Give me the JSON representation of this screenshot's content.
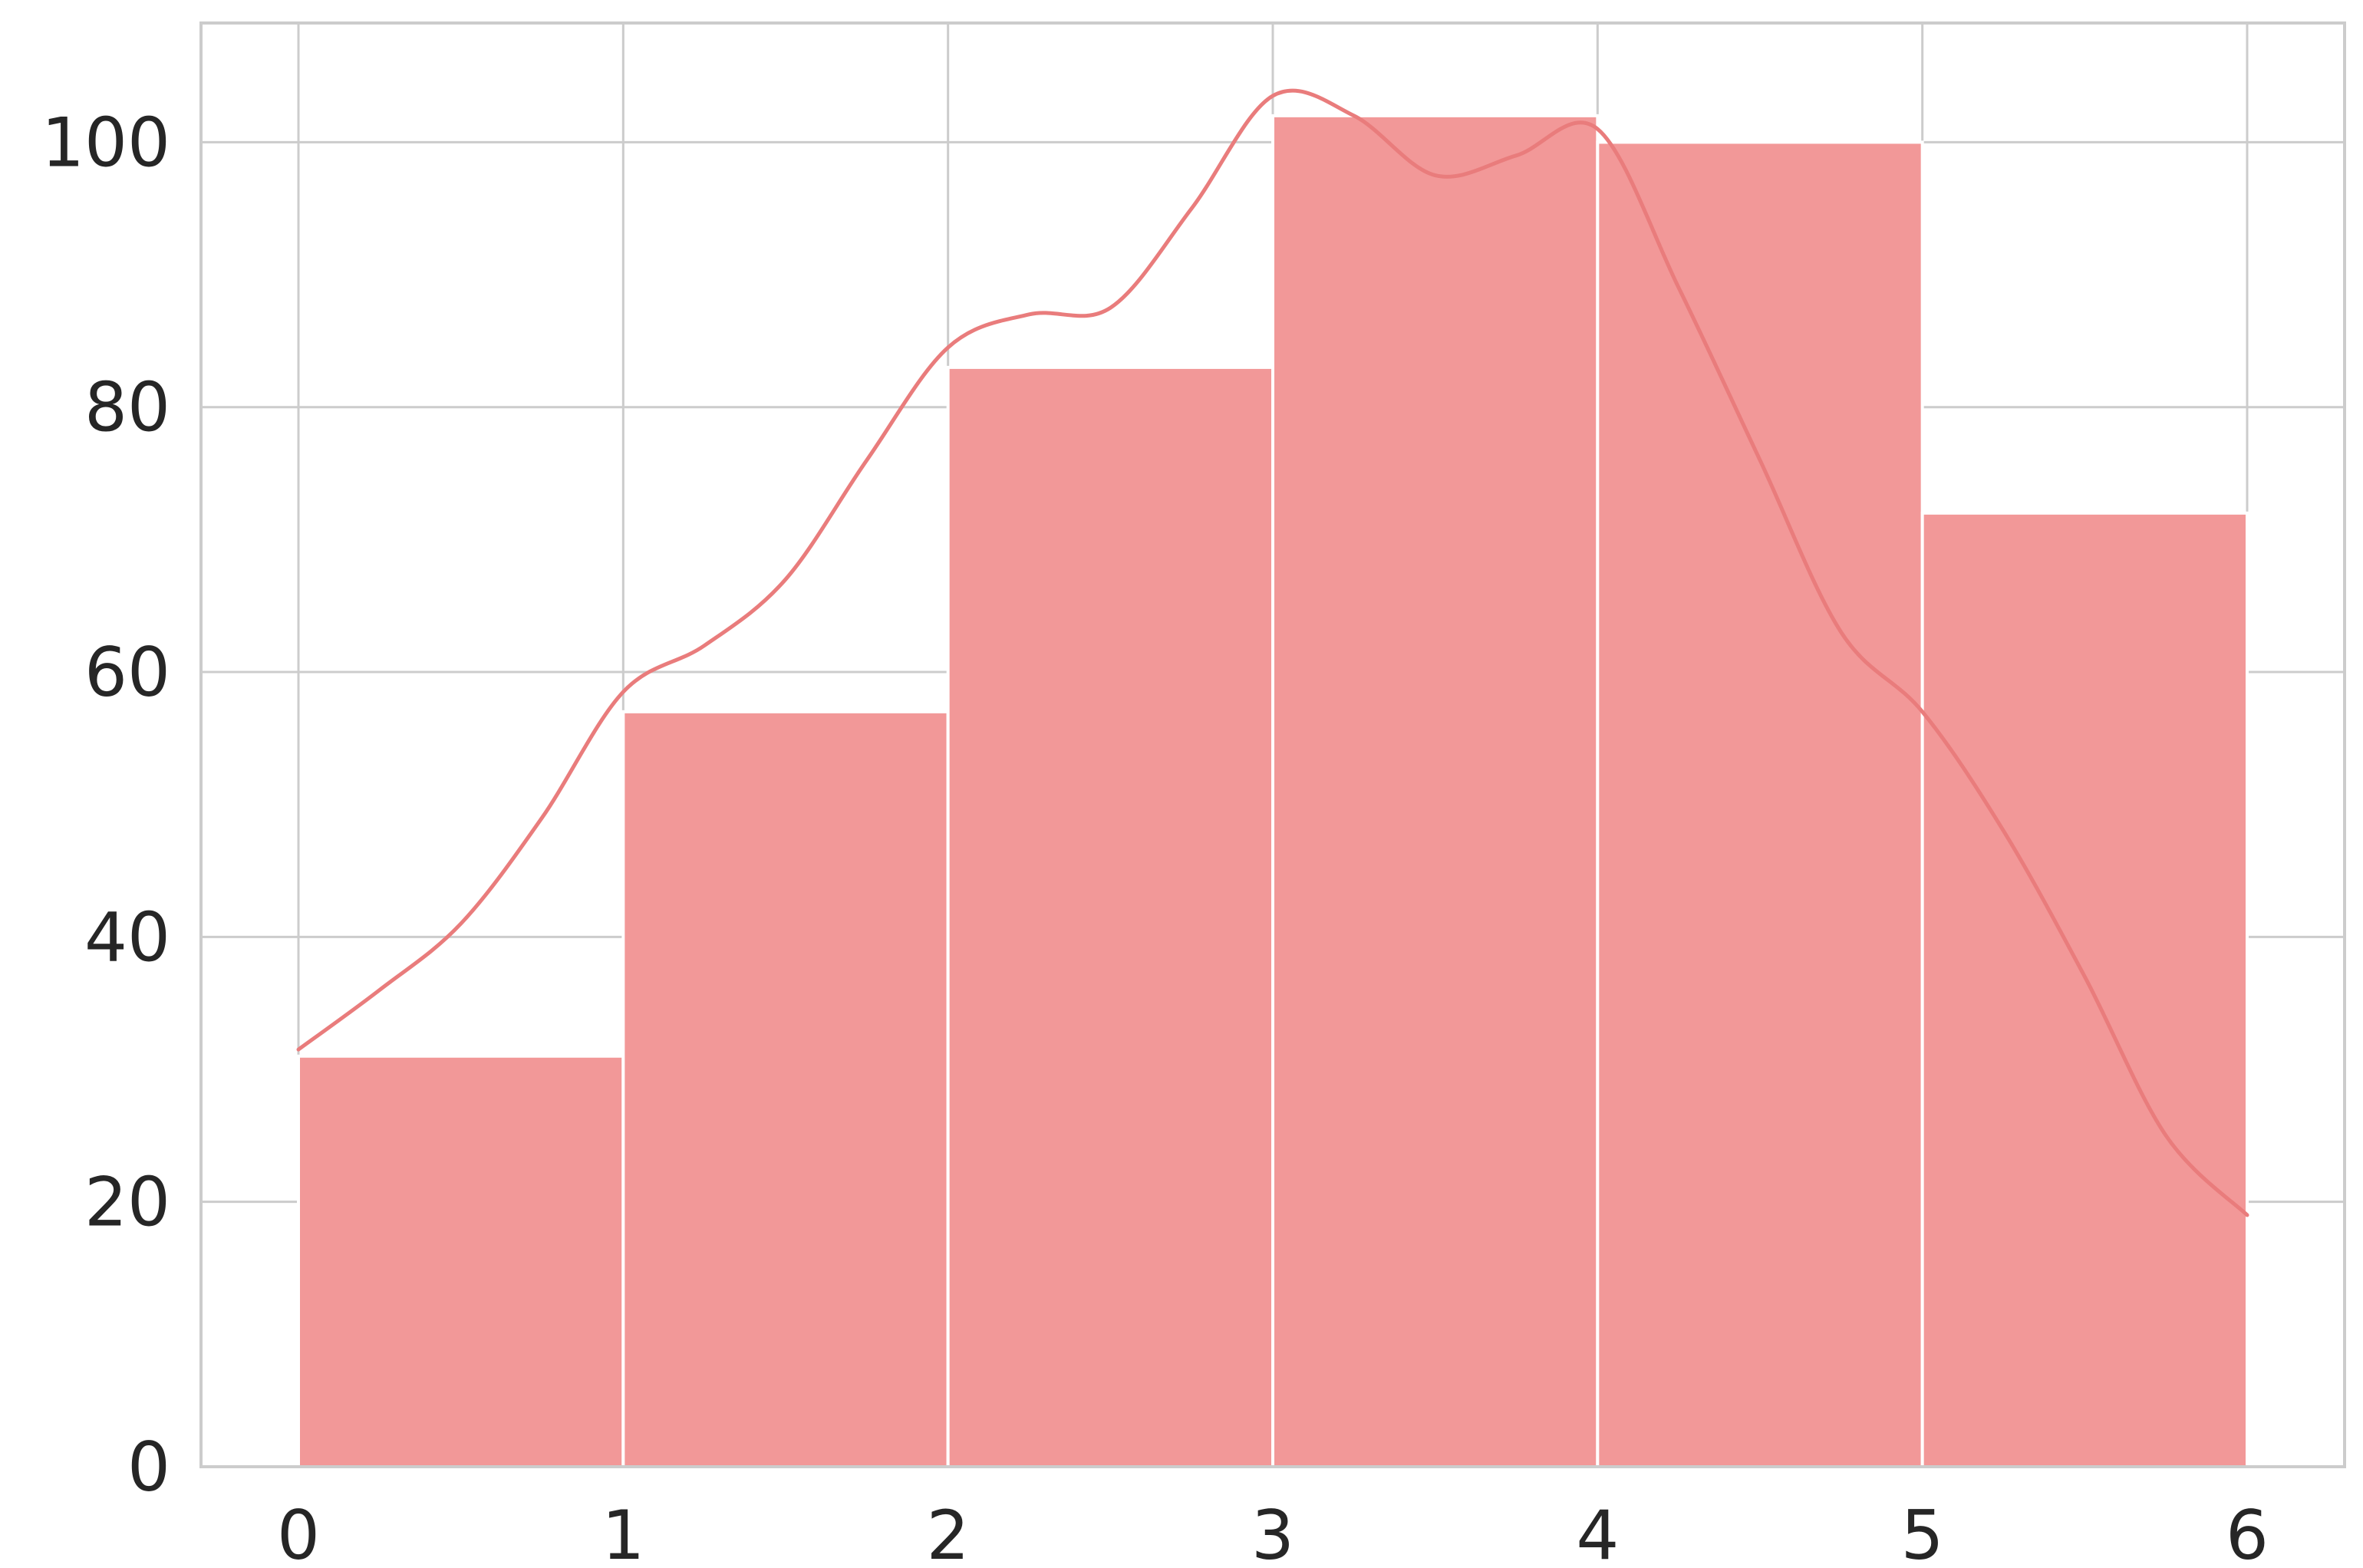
{
  "chart_data": {
    "type": "bar",
    "subtype": "histogram",
    "title": "",
    "xlabel": "",
    "ylabel": "",
    "bin_edges": [
      0,
      1,
      2,
      3,
      4,
      5,
      6
    ],
    "values": [
      31,
      57,
      83,
      102,
      100,
      72
    ],
    "kde_curve": {
      "x": [
        0,
        0.25,
        0.5,
        0.75,
        1.0,
        1.25,
        1.5,
        1.75,
        2.0,
        2.25,
        2.5,
        2.75,
        3.0,
        3.25,
        3.5,
        3.75,
        4.0,
        4.25,
        4.5,
        4.75,
        5.0,
        5.25,
        5.5,
        5.75,
        6.0
      ],
      "y": [
        31.5,
        36,
        41,
        49,
        58.5,
        62,
        67,
        76,
        84.5,
        87,
        87.5,
        95,
        103.5,
        102,
        97.5,
        99,
        101,
        89,
        76,
        63,
        57,
        48,
        37,
        25,
        19
      ]
    },
    "xlim": [
      -0.3,
      6.3
    ],
    "ylim": [
      0,
      109
    ],
    "xticks": [
      "0",
      "1",
      "2",
      "3",
      "4",
      "5",
      "6"
    ],
    "yticks": [
      "0",
      "20",
      "40",
      "60",
      "80",
      "100"
    ],
    "grid": true,
    "legend": "none",
    "colors": {
      "bar_fill": "#f29898",
      "bar_edge": "#ffffff",
      "kde_line": "#e97c7c",
      "grid": "#cccccc",
      "axes": "#cccccc",
      "tick_text": "#262626"
    }
  }
}
